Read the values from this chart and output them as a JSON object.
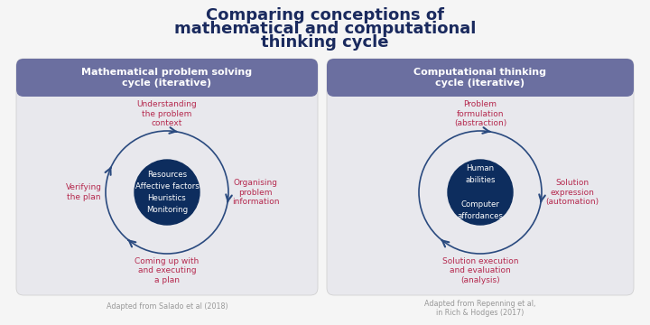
{
  "title_line1": "Comparing conceptions of",
  "title_line2": "mathematical and computational",
  "title_line3": "thinking cycle",
  "title_color": "#1a2a5e",
  "bg_color": "#f5f5f5",
  "panel_bg": "#e8e8ed",
  "header_bg": "#6b6fa0",
  "header_text_color": "#ffffff",
  "left_header": "Mathematical problem solving\ncycle (iterative)",
  "right_header": "Computational thinking\ncycle (iterative)",
  "left_center_lines": [
    "Resources",
    "Affective factors",
    "Heuristics",
    "Monitoring"
  ],
  "right_center_lines": [
    "Human\nabilities",
    "",
    "Computer\naffordances"
  ],
  "left_nodes": {
    "top": [
      "Understanding",
      "the problem",
      "context"
    ],
    "right": [
      "Organising",
      "problem",
      "information"
    ],
    "bottom": [
      "Coming up with",
      "and executing",
      "a plan"
    ],
    "left": [
      "Verifying",
      "the plan"
    ]
  },
  "right_nodes": {
    "top": [
      "Problem",
      "formulation",
      "(abstraction)"
    ],
    "right": [
      "Solution",
      "expression",
      "(automation)"
    ],
    "bottom": [
      "Solution execution",
      "and evaluation",
      "(analysis)"
    ],
    "left": []
  },
  "node_text_color": "#b5294e",
  "circle_fill": "#0d2d5e",
  "circle_text_color": "#ffffff",
  "arrow_color": "#2a4a7f",
  "caption_left": "Adapted from Salado et al (2018)",
  "caption_right": "Adapted from Repenning et al,\nin Rich & Hodges (2017)",
  "caption_color": "#999999"
}
